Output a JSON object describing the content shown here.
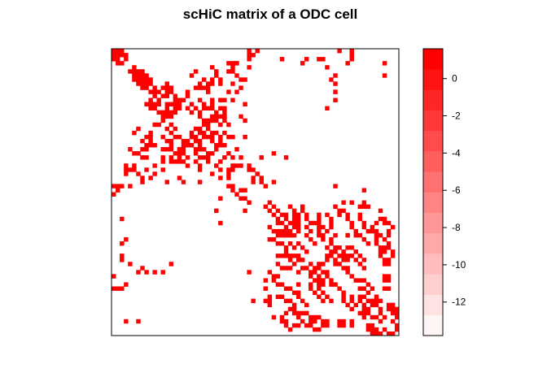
{
  "chart_data": {
    "type": "heatmap",
    "title": "scHiC matrix of a ODC cell",
    "xlabel": "",
    "ylabel": "",
    "matrix_size": 70,
    "cell_color": "#ff0000",
    "legend": {
      "position": "right",
      "range": [
        -13.8,
        1.6
      ],
      "tick_values": [
        0,
        -2,
        -4,
        -6,
        -8,
        -10,
        -12
      ],
      "tick_labels": [
        "0",
        "-2",
        "-4",
        "-6",
        "-8",
        "-10",
        "-12"
      ],
      "bands": 14,
      "low_color": "#fff5f5",
      "high_color": "#ff0000"
    },
    "nonzero_cells": [
      [
        0,
        0
      ],
      [
        0,
        1
      ],
      [
        0,
        2
      ],
      [
        1,
        0
      ],
      [
        1,
        1
      ],
      [
        1,
        2
      ],
      [
        1,
        3
      ],
      [
        2,
        0
      ],
      [
        2,
        1
      ],
      [
        2,
        3
      ],
      [
        0,
        33
      ],
      [
        0,
        35
      ],
      [
        1,
        33
      ],
      [
        2,
        33
      ],
      [
        2,
        41
      ],
      [
        3,
        46
      ],
      [
        2,
        47
      ],
      [
        0,
        58
      ],
      [
        1,
        58
      ],
      [
        2,
        58
      ],
      [
        4,
        5
      ],
      [
        5,
        5
      ],
      [
        5,
        6
      ],
      [
        6,
        6
      ],
      [
        6,
        7
      ],
      [
        7,
        7
      ],
      [
        7,
        8
      ],
      [
        8,
        8
      ],
      [
        5,
        7
      ],
      [
        6,
        5
      ],
      [
        7,
        9
      ],
      [
        8,
        9
      ],
      [
        8,
        6
      ],
      [
        4,
        29
      ],
      [
        3,
        28
      ],
      [
        5,
        28
      ],
      [
        6,
        30
      ],
      [
        7,
        32
      ],
      [
        8,
        29
      ],
      [
        9,
        10
      ],
      [
        10,
        10
      ],
      [
        10,
        11
      ],
      [
        8,
        13
      ],
      [
        9,
        12
      ],
      [
        9,
        13
      ],
      [
        9,
        14
      ],
      [
        10,
        13
      ],
      [
        10,
        14
      ],
      [
        11,
        12
      ],
      [
        11,
        13
      ],
      [
        11,
        15
      ],
      [
        12,
        15
      ],
      [
        12,
        16
      ],
      [
        13,
        14
      ],
      [
        13,
        15
      ],
      [
        13,
        16
      ],
      [
        12,
        17
      ],
      [
        13,
        13
      ],
      [
        14,
        15
      ],
      [
        14,
        16
      ],
      [
        15,
        15
      ],
      [
        10,
        18
      ],
      [
        11,
        18
      ],
      [
        13,
        19
      ],
      [
        14,
        18
      ],
      [
        15,
        19
      ],
      [
        12,
        21
      ],
      [
        13,
        22
      ],
      [
        14,
        20
      ],
      [
        15,
        21
      ],
      [
        12,
        24
      ],
      [
        12,
        26
      ],
      [
        14,
        24
      ],
      [
        14,
        26
      ],
      [
        15,
        25
      ],
      [
        16,
        24
      ],
      [
        16,
        25
      ],
      [
        17,
        24
      ],
      [
        14,
        27
      ],
      [
        15,
        27
      ],
      [
        16,
        27
      ],
      [
        16,
        21
      ],
      [
        17,
        22
      ],
      [
        17,
        23
      ],
      [
        18,
        22
      ],
      [
        18,
        23
      ],
      [
        19,
        20
      ],
      [
        19,
        21
      ],
      [
        19,
        23
      ],
      [
        20,
        21
      ],
      [
        20,
        22
      ],
      [
        21,
        22
      ],
      [
        21,
        23
      ],
      [
        20,
        24
      ],
      [
        21,
        24
      ],
      [
        22,
        24
      ],
      [
        23,
        25
      ],
      [
        24,
        25
      ],
      [
        22,
        26
      ],
      [
        23,
        26
      ],
      [
        8,
        54
      ],
      [
        10,
        54
      ],
      [
        12,
        54
      ],
      [
        19,
        6
      ],
      [
        20,
        5
      ],
      [
        20,
        9
      ],
      [
        21,
        8
      ],
      [
        21,
        9
      ],
      [
        22,
        7
      ],
      [
        22,
        9
      ],
      [
        23,
        8
      ],
      [
        23,
        10
      ],
      [
        24,
        8
      ],
      [
        23,
        9
      ],
      [
        24,
        4
      ],
      [
        25,
        5
      ],
      [
        25,
        6
      ],
      [
        24,
        7
      ],
      [
        26,
        7
      ],
      [
        26,
        8
      ],
      [
        27,
        12
      ],
      [
        28,
        10
      ],
      [
        29,
        12
      ],
      [
        30,
        10
      ],
      [
        22,
        14
      ],
      [
        23,
        14
      ],
      [
        24,
        13
      ],
      [
        25,
        15
      ],
      [
        25,
        17
      ],
      [
        26,
        16
      ],
      [
        27,
        17
      ],
      [
        28,
        18
      ],
      [
        26,
        18
      ],
      [
        25,
        20
      ],
      [
        25,
        23
      ],
      [
        26,
        21
      ],
      [
        26,
        22
      ],
      [
        27,
        20
      ],
      [
        28,
        21
      ],
      [
        29,
        21
      ],
      [
        26,
        42
      ],
      [
        27,
        23
      ],
      [
        28,
        25
      ],
      [
        29,
        26
      ],
      [
        27,
        26
      ],
      [
        28,
        29
      ],
      [
        29,
        29
      ],
      [
        28,
        30
      ],
      [
        30,
        24
      ],
      [
        31,
        26
      ],
      [
        31,
        28
      ],
      [
        29,
        3
      ],
      [
        29,
        4
      ],
      [
        29,
        5
      ],
      [
        30,
        3
      ],
      [
        31,
        7
      ],
      [
        32,
        7
      ],
      [
        31,
        9
      ],
      [
        31,
        16
      ],
      [
        32,
        17
      ],
      [
        32,
        21
      ],
      [
        32,
        39
      ],
      [
        33,
        28
      ],
      [
        33,
        29
      ],
      [
        34,
        29
      ],
      [
        35,
        30
      ],
      [
        36,
        31
      ],
      [
        34,
        31
      ],
      [
        34,
        32
      ],
      [
        36,
        32
      ],
      [
        37,
        33
      ],
      [
        38,
        37
      ],
      [
        39,
        38
      ],
      [
        39,
        40
      ],
      [
        40,
        39
      ],
      [
        41,
        40
      ],
      [
        42,
        41
      ],
      [
        40,
        42
      ],
      [
        43,
        42
      ],
      [
        44,
        43
      ],
      [
        42,
        44
      ],
      [
        38,
        43
      ],
      [
        39,
        44
      ],
      [
        40,
        44
      ],
      [
        41,
        44
      ],
      [
        40,
        45
      ],
      [
        41,
        45
      ],
      [
        42,
        45
      ],
      [
        43,
        45
      ],
      [
        44,
        45
      ],
      [
        45,
        44
      ],
      [
        38,
        46
      ],
      [
        39,
        46
      ],
      [
        40,
        47
      ],
      [
        41,
        47
      ],
      [
        42,
        48
      ],
      [
        43,
        47
      ],
      [
        44,
        48
      ],
      [
        45,
        47
      ],
      [
        46,
        48
      ],
      [
        47,
        49
      ],
      [
        40,
        50
      ],
      [
        41,
        50
      ],
      [
        42,
        50
      ],
      [
        43,
        51
      ],
      [
        44,
        50
      ],
      [
        45,
        51
      ],
      [
        46,
        51
      ],
      [
        40,
        52
      ],
      [
        41,
        53
      ],
      [
        42,
        53
      ],
      [
        38,
        54
      ],
      [
        39,
        55
      ],
      [
        39,
        56
      ],
      [
        40,
        57
      ],
      [
        41,
        57
      ],
      [
        42,
        58
      ],
      [
        43,
        58
      ],
      [
        44,
        59
      ],
      [
        40,
        60
      ],
      [
        41,
        60
      ],
      [
        42,
        61
      ],
      [
        43,
        61
      ],
      [
        44,
        62
      ],
      [
        45,
        60
      ],
      [
        46,
        61
      ],
      [
        47,
        62
      ],
      [
        43,
        63
      ],
      [
        44,
        63
      ],
      [
        45,
        64
      ],
      [
        46,
        64
      ],
      [
        47,
        64
      ],
      [
        48,
        65
      ],
      [
        49,
        65
      ],
      [
        50,
        65
      ],
      [
        51,
        66
      ],
      [
        51,
        67
      ],
      [
        38,
        61
      ],
      [
        39,
        65
      ],
      [
        41,
        66
      ],
      [
        42,
        67
      ],
      [
        43,
        68
      ],
      [
        46,
        53
      ],
      [
        47,
        53
      ],
      [
        48,
        54
      ],
      [
        48,
        55
      ],
      [
        48,
        57
      ],
      [
        49,
        54
      ],
      [
        49,
        56
      ],
      [
        50,
        53
      ],
      [
        50,
        55
      ],
      [
        51,
        52
      ],
      [
        48,
        44
      ],
      [
        49,
        42
      ],
      [
        50,
        43
      ],
      [
        50,
        45
      ],
      [
        51,
        45
      ],
      [
        52,
        44
      ],
      [
        53,
        43
      ],
      [
        53,
        46
      ],
      [
        53,
        47
      ],
      [
        54,
        45
      ],
      [
        52,
        48
      ],
      [
        53,
        49
      ],
      [
        54,
        49
      ],
      [
        55,
        48
      ],
      [
        55,
        50
      ],
      [
        56,
        49
      ],
      [
        56,
        50
      ],
      [
        56,
        51
      ],
      [
        57,
        50
      ],
      [
        57,
        51
      ],
      [
        52,
        50
      ],
      [
        53,
        50
      ],
      [
        54,
        51
      ],
      [
        54,
        52
      ],
      [
        55,
        52
      ],
      [
        56,
        53
      ],
      [
        57,
        53
      ],
      [
        57,
        54
      ],
      [
        55,
        40
      ],
      [
        56,
        39
      ],
      [
        57,
        40
      ],
      [
        57,
        45
      ],
      [
        58,
        42
      ],
      [
        58,
        43
      ],
      [
        59,
        44
      ],
      [
        59,
        45
      ],
      [
        58,
        48
      ],
      [
        58,
        50
      ],
      [
        59,
        49
      ],
      [
        59,
        51
      ],
      [
        60,
        50
      ],
      [
        60,
        52
      ],
      [
        61,
        51
      ],
      [
        61,
        53
      ],
      [
        58,
        55
      ],
      [
        59,
        56
      ],
      [
        60,
        56
      ],
      [
        61,
        56
      ],
      [
        62,
        57
      ],
      [
        60,
        58
      ],
      [
        61,
        58
      ],
      [
        62,
        59
      ],
      [
        63,
        58
      ],
      [
        60,
        60
      ],
      [
        61,
        60
      ],
      [
        62,
        61
      ],
      [
        63,
        61
      ],
      [
        64,
        61
      ],
      [
        63,
        62
      ],
      [
        64,
        62
      ],
      [
        65,
        61
      ],
      [
        65,
        63
      ],
      [
        60,
        64
      ],
      [
        62,
        64
      ],
      [
        63,
        65
      ],
      [
        64,
        65
      ],
      [
        62,
        67
      ],
      [
        63,
        68
      ],
      [
        64,
        69
      ],
      [
        65,
        66
      ],
      [
        64,
        42
      ],
      [
        65,
        41
      ],
      [
        66,
        42
      ],
      [
        64,
        44
      ],
      [
        65,
        45
      ],
      [
        66,
        46
      ],
      [
        67,
        45
      ],
      [
        67,
        44
      ],
      [
        66,
        48
      ],
      [
        66,
        49
      ],
      [
        67,
        47
      ],
      [
        67,
        48
      ],
      [
        68,
        49
      ],
      [
        68,
        50
      ],
      [
        66,
        52
      ],
      [
        67,
        52
      ],
      [
        66,
        55
      ],
      [
        66,
        56
      ],
      [
        67,
        55
      ],
      [
        67,
        56
      ],
      [
        66,
        58
      ],
      [
        67,
        58
      ],
      [
        67,
        62
      ],
      [
        67,
        63
      ],
      [
        68,
        62
      ],
      [
        68,
        64
      ],
      [
        69,
        63
      ],
      [
        69,
        65
      ],
      [
        68,
        66
      ],
      [
        69,
        67
      ],
      [
        69,
        68
      ],
      [
        68,
        69
      ],
      [
        54,
        33
      ],
      [
        61,
        34
      ],
      [
        52,
        4
      ],
      [
        52,
        14
      ],
      [
        51,
        2
      ],
      [
        50,
        2
      ],
      [
        54,
        6
      ],
      [
        53,
        7
      ],
      [
        55,
        0
      ],
      [
        57,
        3
      ],
      [
        56,
        37
      ],
      [
        58,
        37
      ],
      [
        60,
        38
      ],
      [
        61,
        37
      ],
      [
        62,
        38
      ],
      [
        66,
        3
      ],
      [
        66,
        6
      ],
      [
        36,
        26
      ],
      [
        39,
        25
      ],
      [
        33,
        4
      ],
      [
        32,
        13
      ],
      [
        34,
        1
      ]
    ]
  }
}
